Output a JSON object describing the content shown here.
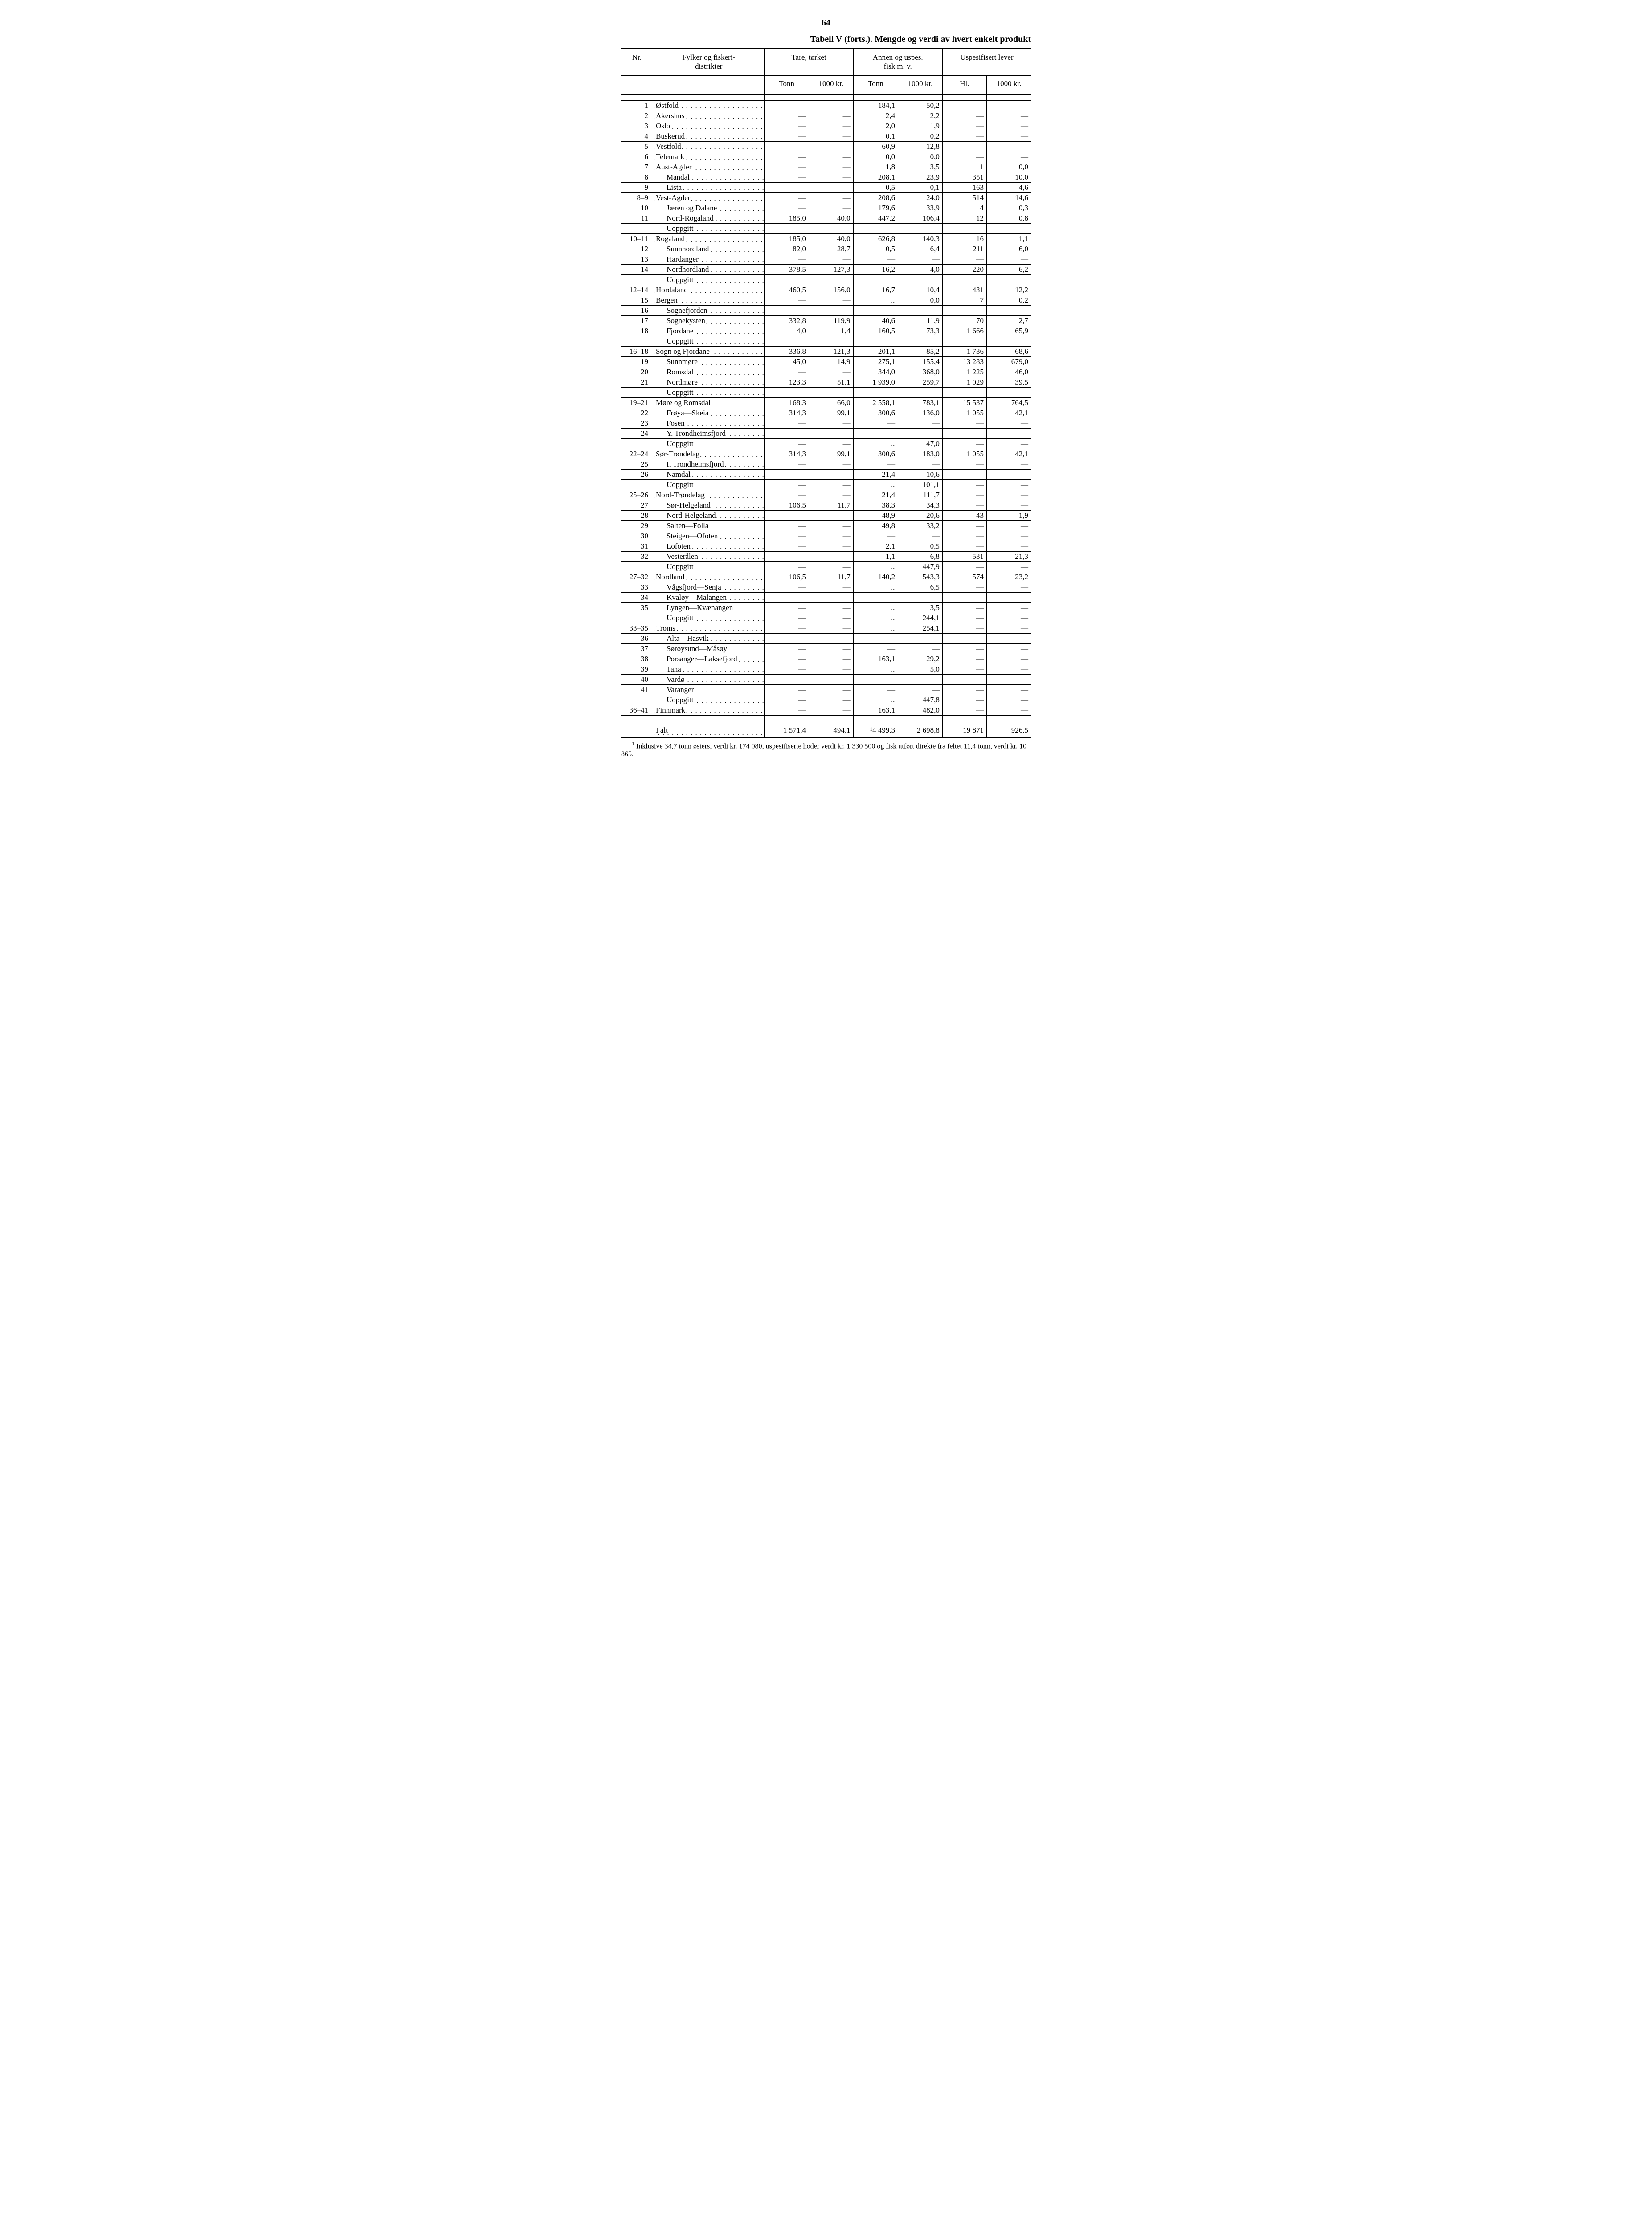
{
  "page_number": "64",
  "title": "Tabell V (forts.). Mengde og verdi av hvert enkelt produkt",
  "header": {
    "nr": "Nr.",
    "name": "Fylker og fiskeri-\ndistrikter",
    "group1": "Tare, tørket",
    "group2": "Annen og uspes.\nfisk m. v.",
    "group3": "Uspesifisert lever",
    "sub_tonn": "Tonn",
    "sub_1000kr": "1000 kr.",
    "sub_hl": "Hl."
  },
  "rows": [
    {
      "nr": "1",
      "name": "Østfold",
      "indent": 0,
      "c": [
        "—",
        "—",
        "184,1",
        "50,2",
        "—",
        "—"
      ]
    },
    {
      "nr": "2",
      "name": "Akershus",
      "indent": 0,
      "c": [
        "—",
        "—",
        "2,4",
        "2,2",
        "—",
        "—"
      ]
    },
    {
      "nr": "3",
      "name": "Oslo",
      "indent": 0,
      "c": [
        "—",
        "—",
        "2,0",
        "1,9",
        "—",
        "—"
      ]
    },
    {
      "nr": "4",
      "name": "Buskerud",
      "indent": 0,
      "c": [
        "—",
        "—",
        "0,1",
        "0,2",
        "—",
        "—"
      ]
    },
    {
      "nr": "5",
      "name": "Vestfold",
      "indent": 0,
      "c": [
        "—",
        "—",
        "60,9",
        "12,8",
        "—",
        "—"
      ]
    },
    {
      "nr": "6",
      "name": "Telemark",
      "indent": 0,
      "c": [
        "—",
        "—",
        "0,0",
        "0,0",
        "—",
        "—"
      ]
    },
    {
      "nr": "7",
      "name": "Aust-Agder",
      "indent": 0,
      "c": [
        "—",
        "—",
        "1,8",
        "3,5",
        "1",
        "0,0"
      ]
    },
    {
      "nr": "8",
      "name": "Mandal",
      "indent": 1,
      "c": [
        "—",
        "—",
        "208,1",
        "23,9",
        "351",
        "10,0"
      ]
    },
    {
      "nr": "9",
      "name": "Lista",
      "indent": 1,
      "c": [
        "—",
        "—",
        "0,5",
        "0,1",
        "163",
        "4,6"
      ]
    },
    {
      "nr": "8–9",
      "name": "Vest-Agder",
      "indent": 0,
      "c": [
        "—",
        "—",
        "208,6",
        "24,0",
        "514",
        "14,6"
      ]
    },
    {
      "nr": "10",
      "name": "Jæren og Dalane",
      "indent": 1,
      "c": [
        "—",
        "—",
        "179,6",
        "33,9",
        "4",
        "0,3"
      ]
    },
    {
      "nr": "11",
      "name": "Nord-Rogaland",
      "indent": 1,
      "c": [
        "185,0",
        "40,0",
        "447,2",
        "106,4",
        "12",
        "0,8"
      ]
    },
    {
      "nr": "",
      "name": "Uoppgitt",
      "indent": 1,
      "c": [
        "",
        "",
        "",
        "",
        "—",
        "—"
      ]
    },
    {
      "nr": "10–11",
      "name": "Rogaland",
      "indent": 0,
      "c": [
        "185,0",
        "40,0",
        "626,8",
        "140,3",
        "16",
        "1,1"
      ]
    },
    {
      "nr": "12",
      "name": "Sunnhordland",
      "indent": 1,
      "c": [
        "82,0",
        "28,7",
        "0,5",
        "6,4",
        "211",
        "6,0"
      ]
    },
    {
      "nr": "13",
      "name": "Hardanger",
      "indent": 1,
      "c": [
        "—",
        "—",
        "—",
        "—",
        "—",
        "—"
      ]
    },
    {
      "nr": "14",
      "name": "Nordhordland",
      "indent": 1,
      "c": [
        "378,5",
        "127,3",
        "16,2",
        "4,0",
        "220",
        "6,2"
      ]
    },
    {
      "nr": "",
      "name": "Uoppgitt",
      "indent": 1,
      "c": [
        "",
        "",
        "",
        "",
        "",
        ""
      ]
    },
    {
      "nr": "12–14",
      "name": "Hordaland",
      "indent": 0,
      "c": [
        "460,5",
        "156,0",
        "16,7",
        "10,4",
        "431",
        "12,2"
      ]
    },
    {
      "nr": "15",
      "name": "Bergen",
      "indent": 0,
      "c": [
        "—",
        "—",
        "‥",
        "0,0",
        "7",
        "0,2"
      ]
    },
    {
      "nr": "16",
      "name": "Sognefjorden",
      "indent": 1,
      "c": [
        "—",
        "—",
        "—",
        "—",
        "—",
        "—"
      ]
    },
    {
      "nr": "17",
      "name": "Sognekysten",
      "indent": 1,
      "c": [
        "332,8",
        "119,9",
        "40,6",
        "11,9",
        "70",
        "2,7"
      ]
    },
    {
      "nr": "18",
      "name": "Fjordane",
      "indent": 1,
      "c": [
        "4,0",
        "1,4",
        "160,5",
        "73,3",
        "1 666",
        "65,9"
      ]
    },
    {
      "nr": "",
      "name": "Uoppgitt",
      "indent": 1,
      "c": [
        "",
        "",
        "",
        "",
        "",
        ""
      ]
    },
    {
      "nr": "16–18",
      "name": "Sogn og Fjordane",
      "indent": 0,
      "c": [
        "336,8",
        "121,3",
        "201,1",
        "85,2",
        "1 736",
        "68,6"
      ]
    },
    {
      "nr": "19",
      "name": "Sunnmøre",
      "indent": 1,
      "c": [
        "45,0",
        "14,9",
        "275,1",
        "155,4",
        "13 283",
        "679,0"
      ]
    },
    {
      "nr": "20",
      "name": "Romsdal",
      "indent": 1,
      "c": [
        "—",
        "—",
        "344,0",
        "368,0",
        "1 225",
        "46,0"
      ]
    },
    {
      "nr": "21",
      "name": "Nordmøre",
      "indent": 1,
      "c": [
        "123,3",
        "51,1",
        "1 939,0",
        "259,7",
        "1 029",
        "39,5"
      ]
    },
    {
      "nr": "",
      "name": "Uoppgitt",
      "indent": 1,
      "c": [
        "",
        "",
        "",
        "",
        "",
        ""
      ]
    },
    {
      "nr": "19–21",
      "name": "Møre og Romsdal",
      "indent": 0,
      "c": [
        "168,3",
        "66,0",
        "2 558,1",
        "783,1",
        "15 537",
        "764,5"
      ]
    },
    {
      "nr": "22",
      "name": "Frøya—Skeia",
      "indent": 1,
      "c": [
        "314,3",
        "99,1",
        "300,6",
        "136,0",
        "1 055",
        "42,1"
      ]
    },
    {
      "nr": "23",
      "name": "Fosen",
      "indent": 1,
      "c": [
        "—",
        "—",
        "—",
        "—",
        "—",
        "—"
      ]
    },
    {
      "nr": "24",
      "name": "Y. Trondheimsfjord",
      "indent": 1,
      "c": [
        "—",
        "—",
        "—",
        "—",
        "—",
        "—"
      ]
    },
    {
      "nr": "",
      "name": "Uoppgitt",
      "indent": 1,
      "c": [
        "—",
        "—",
        "‥",
        "47,0",
        "—",
        "—"
      ]
    },
    {
      "nr": "22–24",
      "name": "Sør-Trøndelag",
      "indent": 0,
      "c": [
        "314,3",
        "99,1",
        "300,6",
        "183,0",
        "1 055",
        "42,1"
      ]
    },
    {
      "nr": "25",
      "name": "I. Trondheimsfjord",
      "indent": 1,
      "c": [
        "—",
        "—",
        "—",
        "—",
        "—",
        "—"
      ]
    },
    {
      "nr": "26",
      "name": "Namdal",
      "indent": 1,
      "c": [
        "—",
        "—",
        "21,4",
        "10,6",
        "—",
        "—"
      ]
    },
    {
      "nr": "",
      "name": "Uoppgitt",
      "indent": 1,
      "c": [
        "—",
        "—",
        "‥",
        "101,1",
        "—",
        "—"
      ]
    },
    {
      "nr": "25–26",
      "name": "Nord-Trøndelag",
      "indent": 0,
      "c": [
        "—",
        "—",
        "21,4",
        "111,7",
        "—",
        "—"
      ]
    },
    {
      "nr": "27",
      "name": "Sør-Helgeland",
      "indent": 1,
      "c": [
        "106,5",
        "11,7",
        "38,3",
        "34,3",
        "—",
        "—"
      ]
    },
    {
      "nr": "28",
      "name": "Nord-Helgeland",
      "indent": 1,
      "c": [
        "—",
        "—",
        "48,9",
        "20,6",
        "43",
        "1,9"
      ]
    },
    {
      "nr": "29",
      "name": "Salten—Folla",
      "indent": 1,
      "c": [
        "—",
        "—",
        "49,8",
        "33,2",
        "—",
        "—"
      ]
    },
    {
      "nr": "30",
      "name": "Steigen—Ofoten",
      "indent": 1,
      "c": [
        "—",
        "—",
        "—",
        "—",
        "—",
        "—"
      ]
    },
    {
      "nr": "31",
      "name": "Lofoten",
      "indent": 1,
      "c": [
        "—",
        "—",
        "2,1",
        "0,5",
        "—",
        "—"
      ]
    },
    {
      "nr": "32",
      "name": "Vesterålen",
      "indent": 1,
      "c": [
        "—",
        "—",
        "1,1",
        "6,8",
        "531",
        "21,3"
      ]
    },
    {
      "nr": "",
      "name": "Uoppgitt",
      "indent": 1,
      "c": [
        "—",
        "—",
        "‥",
        "447,9",
        "—",
        "—"
      ]
    },
    {
      "nr": "27–32",
      "name": "Nordland",
      "indent": 0,
      "c": [
        "106,5",
        "11,7",
        "140,2",
        "543,3",
        "574",
        "23,2"
      ]
    },
    {
      "nr": "33",
      "name": "Vågsfjord—Senja",
      "indent": 1,
      "c": [
        "—",
        "—",
        "‥",
        "6,5",
        "—",
        "—"
      ]
    },
    {
      "nr": "34",
      "name": "Kvaløy—Malangen",
      "indent": 1,
      "c": [
        "—",
        "—",
        "—",
        "—",
        "—",
        "—"
      ]
    },
    {
      "nr": "35",
      "name": "Lyngen—Kvænangen",
      "indent": 1,
      "c": [
        "—",
        "—",
        "‥",
        "3,5",
        "—",
        "—"
      ]
    },
    {
      "nr": "",
      "name": "Uoppgitt",
      "indent": 1,
      "c": [
        "—",
        "—",
        "‥",
        "244,1",
        "—",
        "—"
      ]
    },
    {
      "nr": "33–35",
      "name": "Troms",
      "indent": 0,
      "c": [
        "—",
        "—",
        "‥",
        "254,1",
        "—",
        "—"
      ]
    },
    {
      "nr": "36",
      "name": "Alta—Hasvik",
      "indent": 1,
      "c": [
        "—",
        "—",
        "—",
        "—",
        "—",
        "—"
      ]
    },
    {
      "nr": "37",
      "name": "Sørøysund—Måsøy",
      "indent": 1,
      "c": [
        "—",
        "—",
        "—",
        "—",
        "—",
        "—"
      ]
    },
    {
      "nr": "38",
      "name": "Porsanger—Laksefjord",
      "indent": 1,
      "c": [
        "—",
        "—",
        "163,1",
        "29,2",
        "—",
        "—"
      ]
    },
    {
      "nr": "39",
      "name": "Tana",
      "indent": 1,
      "c": [
        "—",
        "—",
        "‥",
        "5,0",
        "—",
        "—"
      ]
    },
    {
      "nr": "40",
      "name": "Vardø",
      "indent": 1,
      "c": [
        "—",
        "—",
        "—",
        "—",
        "—",
        "—"
      ]
    },
    {
      "nr": "41",
      "name": "Varanger",
      "indent": 1,
      "c": [
        "—",
        "—",
        "—",
        "—",
        "—",
        "—"
      ]
    },
    {
      "nr": "",
      "name": "Uoppgitt",
      "indent": 1,
      "c": [
        "—",
        "—",
        "‥",
        "447,8",
        "—",
        "—"
      ]
    },
    {
      "nr": "36–41",
      "name": "Finnmark",
      "indent": 0,
      "c": [
        "—",
        "—",
        "163,1",
        "482,0",
        "—",
        "—"
      ]
    }
  ],
  "total": {
    "label": "I alt",
    "c": [
      "1 571,4",
      "494,1",
      "¹4 499,3",
      "2 698,8",
      "19 871",
      "926,5"
    ]
  },
  "footnote_marker": "1",
  "footnote": "Inklusive 34,7 tonn østers, verdi kr. 174 080, uspesifiserte hoder verdi kr. 1 330 500 og fisk utført direkte fra feltet 11,4 tonn, verdi kr. 10 865."
}
